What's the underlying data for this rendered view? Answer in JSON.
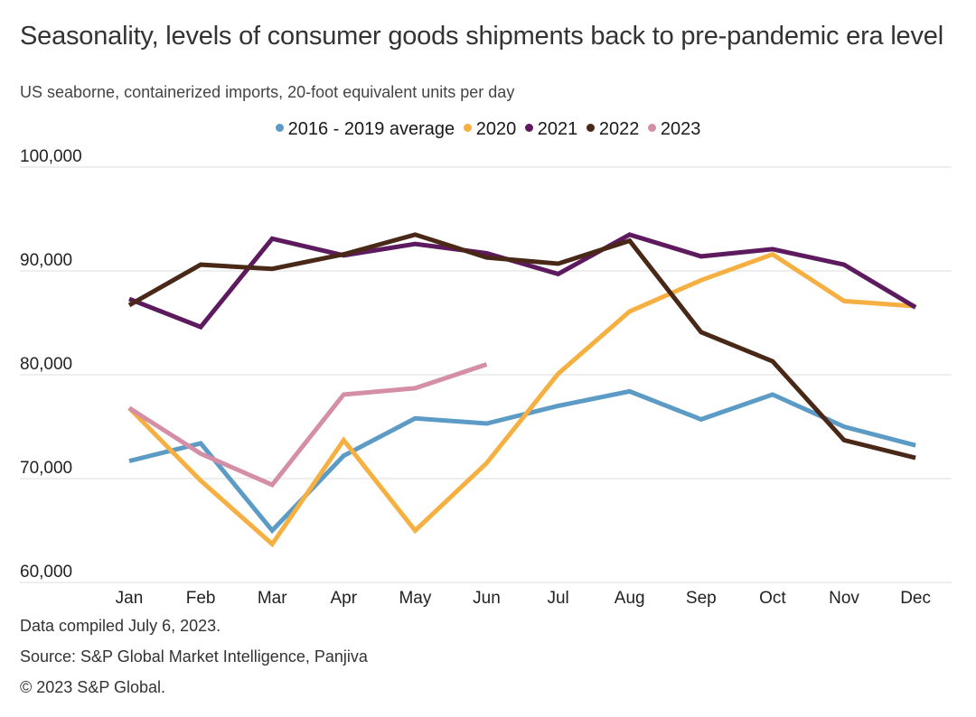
{
  "chart_data": {
    "type": "line",
    "title": "Seasonality, levels of consumer goods shipments back to pre-pandemic era level",
    "subtitle": "US seaborne, containerized imports, 20-foot equivalent units per day",
    "xlabel": "",
    "ylabel": "",
    "categories": [
      "Jan",
      "Feb",
      "Mar",
      "Apr",
      "May",
      "Jun",
      "Jul",
      "Aug",
      "Sep",
      "Oct",
      "Nov",
      "Dec"
    ],
    "ylim": [
      60000,
      100000
    ],
    "yticks": [
      100000,
      90000,
      80000,
      70000,
      60000
    ],
    "ytick_labels": [
      "100,000",
      "90,000",
      "80,000",
      "70,000",
      "60,000"
    ],
    "grid": true,
    "legend_position": "top-center",
    "series": [
      {
        "name": "2016 - 2019 average",
        "color": "#5b9bc5",
        "values": [
          71700,
          73400,
          65000,
          72200,
          75800,
          75300,
          77000,
          78400,
          75700,
          78100,
          75000,
          73200
        ]
      },
      {
        "name": "2020",
        "color": "#f5b041",
        "values": [
          76800,
          69800,
          63700,
          73700,
          65000,
          71500,
          80100,
          86100,
          89100,
          91600,
          87100,
          86600
        ]
      },
      {
        "name": "2021",
        "color": "#5e1a5e",
        "values": [
          87300,
          84600,
          93100,
          91500,
          92600,
          91700,
          89700,
          93500,
          91400,
          92100,
          90600,
          86500
        ]
      },
      {
        "name": "2022",
        "color": "#4a2817",
        "values": [
          86700,
          90600,
          90200,
          91600,
          93500,
          91300,
          90700,
          92900,
          84100,
          81300,
          73700,
          72000
        ]
      },
      {
        "name": "2023",
        "color": "#d48ea6",
        "values": [
          76800,
          72400,
          69400,
          78100,
          78700,
          81000,
          null,
          null,
          null,
          null,
          null,
          null
        ]
      }
    ]
  },
  "footer": {
    "data_compiled": "Data compiled July 6, 2023.",
    "source": "Source: S&P Global Market Intelligence, Panjiva",
    "copyright": "© 2023 S&P Global."
  }
}
